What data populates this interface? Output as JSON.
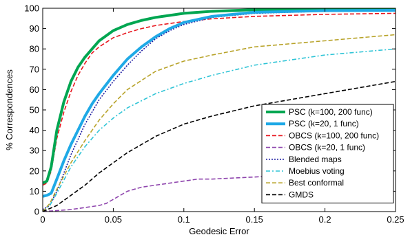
{
  "chart_data": {
    "type": "line",
    "title": "",
    "xlabel": "Geodesic Error",
    "ylabel": "% Correspondences",
    "xlim": [
      0,
      0.25
    ],
    "ylim": [
      0,
      100
    ],
    "xticks": [
      0,
      0.05,
      0.1,
      0.15,
      0.2,
      0.25
    ],
    "xtick_labels": [
      "0",
      "0.05",
      "0.1",
      "0.15",
      "0.2",
      "0.25"
    ],
    "yticks": [
      0,
      10,
      20,
      30,
      40,
      50,
      60,
      70,
      80,
      90,
      100
    ],
    "ytick_labels": [
      "0",
      "10",
      "20",
      "30",
      "40",
      "50",
      "60",
      "70",
      "80",
      "90",
      "100"
    ],
    "grid": false,
    "legend_position": "bottom-right",
    "series": [
      {
        "name": "PSC (k=100, 200 func)",
        "color": "#00a651",
        "style": "solid",
        "width": "thick",
        "x": [
          0,
          0.003,
          0.006,
          0.01,
          0.015,
          0.02,
          0.025,
          0.03,
          0.035,
          0.04,
          0.05,
          0.06,
          0.07,
          0.08,
          0.09,
          0.1,
          0.12,
          0.15,
          0.2,
          0.25
        ],
        "y": [
          14,
          15,
          22,
          40,
          54,
          64,
          71,
          76,
          80,
          84,
          89,
          92,
          94,
          95.5,
          96.5,
          97.5,
          98.5,
          99.3,
          99.5,
          99.6
        ]
      },
      {
        "name": "PSC (k=20, 1 func)",
        "color": "#1fa9e6",
        "style": "solid",
        "width": "thick",
        "x": [
          0,
          0.003,
          0.006,
          0.01,
          0.015,
          0.02,
          0.025,
          0.03,
          0.035,
          0.04,
          0.05,
          0.06,
          0.07,
          0.08,
          0.09,
          0.1,
          0.12,
          0.15,
          0.2,
          0.25
        ],
        "y": [
          7.5,
          8,
          9,
          16,
          25,
          33,
          40,
          47,
          53,
          58,
          67,
          75,
          81,
          86,
          90,
          93,
          96,
          98,
          98.8,
          99
        ]
      },
      {
        "name": "OBCS (k=100, 200 func)",
        "color": "#e8141c",
        "style": "dash",
        "width": "normal",
        "x": [
          0,
          0.003,
          0.006,
          0.01,
          0.015,
          0.02,
          0.025,
          0.03,
          0.035,
          0.04,
          0.05,
          0.06,
          0.07,
          0.08,
          0.09,
          0.1,
          0.12,
          0.15,
          0.2,
          0.25
        ],
        "y": [
          13,
          14,
          20,
          36,
          49,
          59,
          67,
          73,
          78,
          81,
          85.5,
          88,
          90,
          91.5,
          92.5,
          93.5,
          94.8,
          96,
          97,
          97.5
        ]
      },
      {
        "name": "OBCS (k=20, 1 func)",
        "color": "#8e44ad",
        "style": "dash",
        "width": "normal",
        "x": [
          0,
          0.01,
          0.02,
          0.03,
          0.04,
          0.045,
          0.05,
          0.055,
          0.06,
          0.07,
          0.08,
          0.09,
          0.1,
          0.11,
          0.12,
          0.15,
          0.2,
          0.24,
          0.25
        ],
        "y": [
          0,
          0.5,
          1,
          2,
          3,
          4,
          6,
          8,
          10,
          12,
          13,
          14,
          15,
          16,
          16,
          17,
          19,
          22,
          25
        ]
      },
      {
        "name": "Blended maps",
        "color": "#1a1aa0",
        "style": "dot",
        "width": "normal",
        "x": [
          0,
          0.005,
          0.01,
          0.015,
          0.02,
          0.03,
          0.04,
          0.05,
          0.06,
          0.07,
          0.08,
          0.09,
          0.1,
          0.12,
          0.15,
          0.2,
          0.25
        ],
        "y": [
          1,
          3,
          10,
          19,
          28,
          43,
          55,
          64,
          72,
          79,
          85,
          89,
          92,
          95.5,
          97.5,
          98.5,
          99
        ]
      },
      {
        "name": "Moebius voting",
        "color": "#2ec4d6",
        "style": "dashdot",
        "width": "normal",
        "x": [
          0,
          0.005,
          0.01,
          0.02,
          0.03,
          0.04,
          0.05,
          0.06,
          0.08,
          0.1,
          0.12,
          0.15,
          0.2,
          0.25
        ],
        "y": [
          0,
          3,
          9,
          22,
          32,
          40,
          46,
          51,
          58,
          63,
          67,
          72,
          77,
          80
        ]
      },
      {
        "name": "Best conformal",
        "color": "#b8a32a",
        "style": "dash",
        "width": "normal",
        "x": [
          0,
          0.005,
          0.01,
          0.02,
          0.03,
          0.04,
          0.05,
          0.06,
          0.08,
          0.1,
          0.12,
          0.15,
          0.2,
          0.25
        ],
        "y": [
          0,
          4,
          11,
          24,
          35,
          45,
          53,
          60,
          69,
          74,
          77,
          81,
          84,
          87
        ]
      },
      {
        "name": "GMDS",
        "color": "#000000",
        "style": "dash",
        "width": "normal",
        "x": [
          0,
          0.01,
          0.02,
          0.03,
          0.04,
          0.05,
          0.06,
          0.07,
          0.08,
          0.1,
          0.12,
          0.15,
          0.2,
          0.25
        ],
        "y": [
          0,
          3,
          8,
          13,
          19,
          24,
          29,
          33,
          37,
          43,
          47,
          52,
          58,
          64
        ]
      }
    ]
  }
}
